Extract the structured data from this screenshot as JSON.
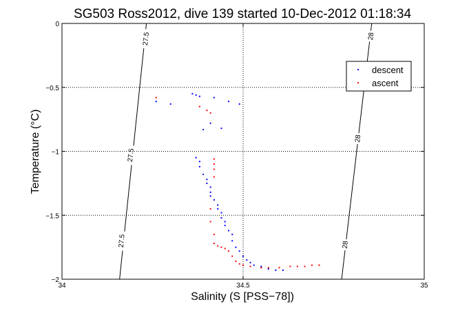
{
  "chart_data": {
    "type": "scatter",
    "title": "SG503 Ross2012, dive 139 started 10-Dec-2012 01:18:34",
    "xlabel": "Salinity (S [PSS−78])",
    "ylabel": "Temperature (°C)",
    "xlim": [
      34,
      35
    ],
    "ylim": [
      -2,
      0
    ],
    "x_ticks": [
      34,
      34.5,
      35
    ],
    "x_tick_labels": [
      "34",
      "34.5",
      "35"
    ],
    "y_ticks": [
      0,
      -0.5,
      -1,
      -1.5,
      -2
    ],
    "y_tick_labels": [
      "0",
      "−0.5",
      "−1",
      "−1.5",
      "−2"
    ],
    "grid": true,
    "grid_style": "dotted",
    "legend_placement": "top-right",
    "density_contours": [
      {
        "label": "27.5",
        "x": [
          34.159,
          34.233
        ],
        "y": [
          -2,
          0
        ],
        "labels": [
          {
            "x": 34.231,
            "y": -0.12,
            "text": "27.5"
          },
          {
            "x": 34.189,
            "y": -1.03,
            "text": "27.5"
          },
          {
            "x": 34.164,
            "y": -1.7,
            "text": "27.5"
          }
        ]
      },
      {
        "label": "28",
        "x": [
          34.772,
          34.855
        ],
        "y": [
          -2,
          0
        ],
        "labels": [
          {
            "x": 34.852,
            "y": -0.1,
            "text": "28"
          },
          {
            "x": 34.816,
            "y": -0.9,
            "text": "28"
          },
          {
            "x": 34.781,
            "y": -1.73,
            "text": "28"
          }
        ]
      }
    ],
    "series": [
      {
        "name": "descent",
        "color": "#0000ff",
        "x": [
          34.36,
          34.37,
          34.38,
          34.42,
          34.46,
          34.49,
          34.26,
          34.3,
          34.39,
          34.41,
          34.44,
          34.37,
          34.38,
          34.38,
          34.39,
          34.4,
          34.4,
          34.41,
          34.41,
          34.41,
          34.42,
          34.43,
          34.43,
          34.44,
          34.44,
          34.45,
          34.45,
          34.46,
          34.47,
          34.47,
          34.48,
          34.49,
          34.5,
          34.51,
          34.52,
          34.53,
          34.55,
          34.57,
          34.59,
          34.61
        ],
        "y": [
          -0.55,
          -0.56,
          -0.57,
          -0.58,
          -0.61,
          -0.63,
          -0.61,
          -0.63,
          -0.83,
          -0.78,
          -0.82,
          -1.05,
          -1.08,
          -1.12,
          -1.18,
          -1.22,
          -1.25,
          -1.28,
          -1.32,
          -1.35,
          -1.38,
          -1.42,
          -1.45,
          -1.48,
          -1.52,
          -1.55,
          -1.58,
          -1.62,
          -1.65,
          -1.7,
          -1.75,
          -1.78,
          -1.82,
          -1.85,
          -1.87,
          -1.89,
          -1.9,
          -1.92,
          -1.93,
          -1.93
        ]
      },
      {
        "name": "ascent",
        "color": "#ff0000",
        "x": [
          34.26,
          34.38,
          34.4,
          34.41,
          34.42,
          34.42,
          34.42,
          34.42,
          34.41,
          34.41,
          34.42,
          34.42,
          34.43,
          34.44,
          34.45,
          34.46,
          34.47,
          34.48,
          34.49,
          34.5,
          34.52,
          34.55,
          34.57,
          34.6,
          34.63,
          34.65,
          34.67,
          34.69,
          34.71
        ],
        "y": [
          -0.58,
          -0.65,
          -0.68,
          -0.7,
          -1.06,
          -1.1,
          -1.14,
          -1.2,
          -1.45,
          -1.55,
          -1.65,
          -1.72,
          -1.74,
          -1.75,
          -1.76,
          -1.78,
          -1.82,
          -1.86,
          -1.88,
          -1.89,
          -1.9,
          -1.91,
          -1.91,
          -1.91,
          -1.9,
          -1.9,
          -1.9,
          -1.89,
          -1.89
        ]
      }
    ]
  }
}
